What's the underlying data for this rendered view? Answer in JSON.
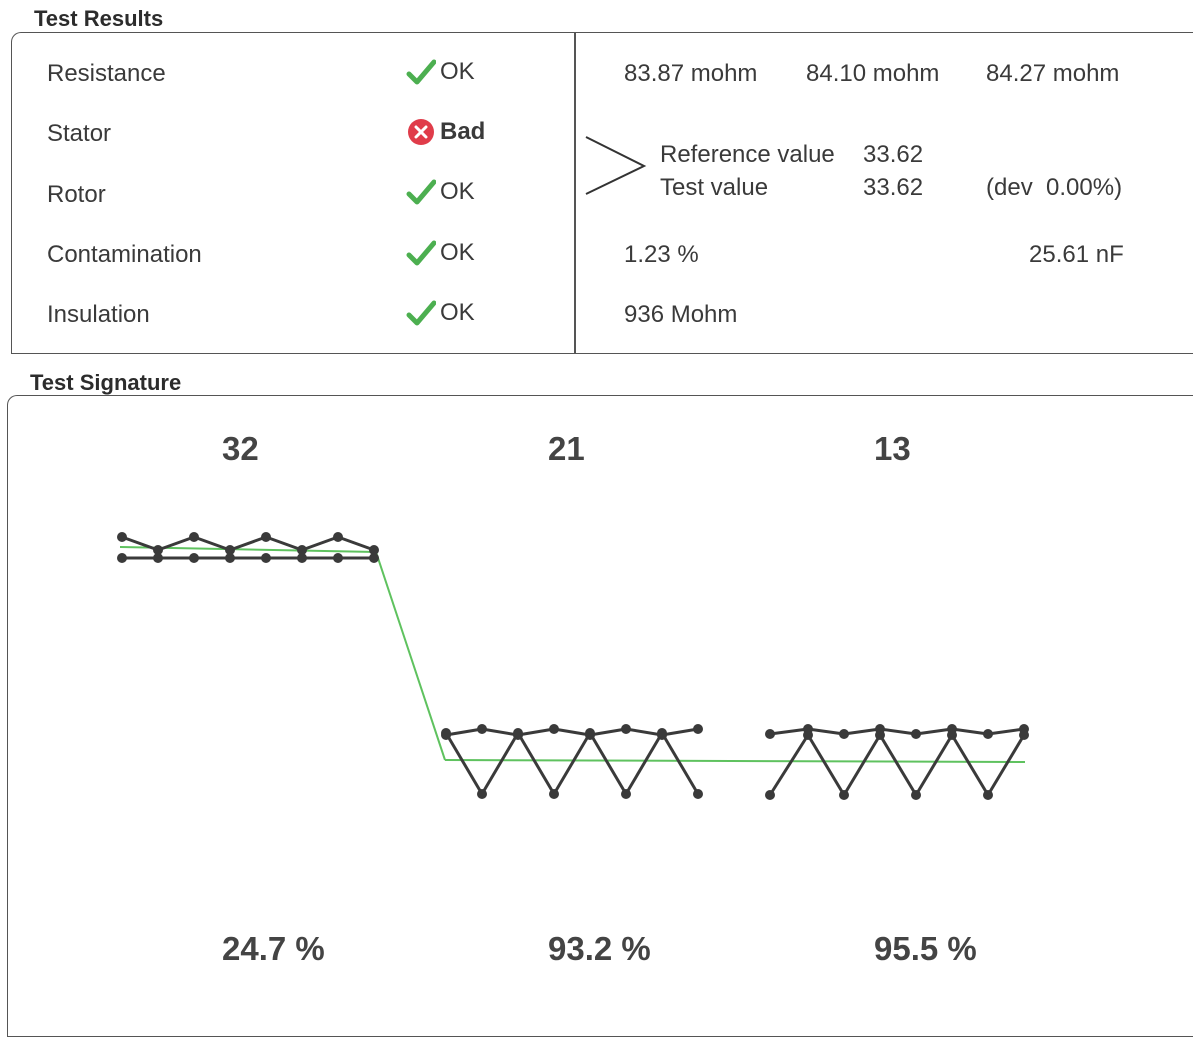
{
  "test_results": {
    "title": "Test Results",
    "rows": [
      {
        "name": "Resistance",
        "status": "OK",
        "status_icon": "check-icon"
      },
      {
        "name": "Stator",
        "status": "Bad",
        "status_icon": "error-x-icon"
      },
      {
        "name": "Rotor",
        "status": "OK",
        "status_icon": "check-icon"
      },
      {
        "name": "Contamination",
        "status": "OK",
        "status_icon": "check-icon"
      },
      {
        "name": "Insulation",
        "status": "OK",
        "status_icon": "check-icon"
      }
    ],
    "resistance_values": [
      "83.87 mohm",
      "84.10 mohm",
      "84.27 mohm"
    ],
    "reference_label": "Reference value",
    "reference_value": "33.62",
    "test_label": "Test value",
    "test_value": "33.62",
    "deviation": "(dev  0.00%)",
    "contamination_pct": "1.23 %",
    "contamination_cap": "25.61 nF",
    "insulation_value": "936 Mohm"
  },
  "test_signature": {
    "title": "Test Signature",
    "groups": [
      {
        "number": "32",
        "percent": "24.7 %"
      },
      {
        "number": "21",
        "percent": "93.2 %"
      },
      {
        "number": "13",
        "percent": "95.5 %"
      }
    ]
  },
  "colors": {
    "check_green": "#4caf50",
    "bad_red": "#e03c4a",
    "trace_dark": "#3a3a3a",
    "reference_line": "#5fc25f"
  }
}
